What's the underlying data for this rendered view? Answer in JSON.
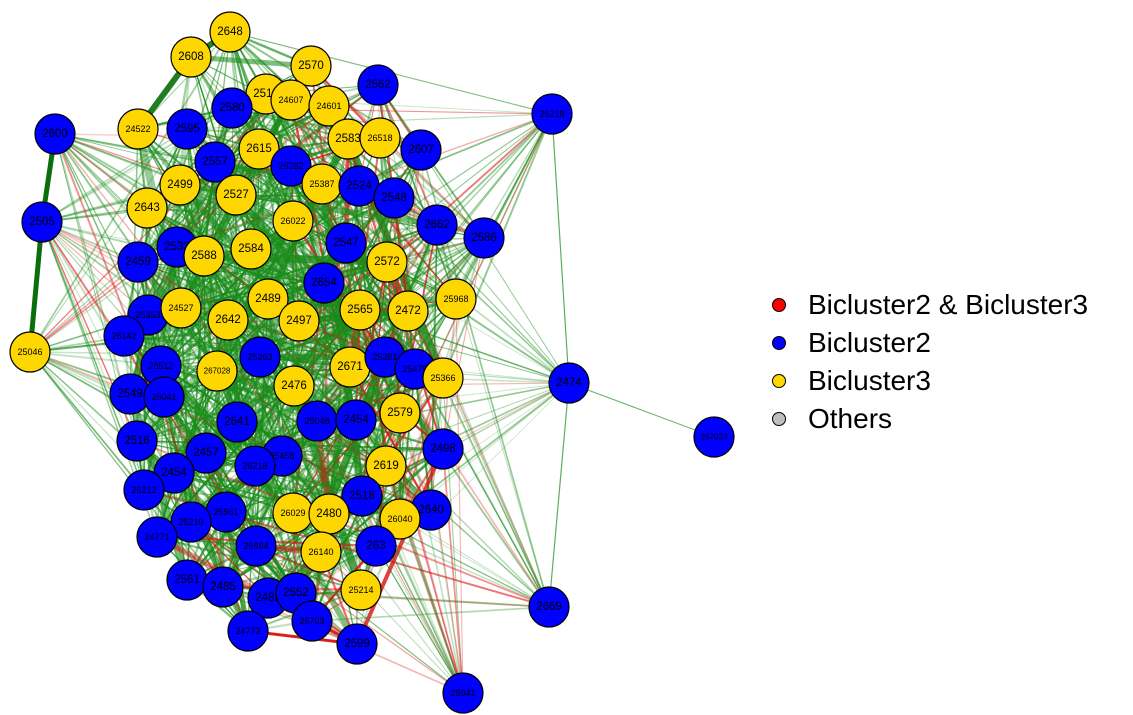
{
  "colors": {
    "both": "#ff0000",
    "bicluster2": "#0000ff",
    "bicluster3": "#ffd700",
    "others": "#bebebe",
    "edge_positive": "#1a8c1a",
    "edge_negative": "#e01010"
  },
  "legend": [
    {
      "label": "Bicluster2 & Bicluster3",
      "group": "both"
    },
    {
      "label": "Bicluster2",
      "group": "bicluster2"
    },
    {
      "label": "Bicluster3",
      "group": "bicluster3"
    },
    {
      "label": "Others",
      "group": "others"
    }
  ],
  "nodes": [
    {
      "id": "2648",
      "group": "bicluster3"
    },
    {
      "id": "2608",
      "group": "bicluster3"
    },
    {
      "id": "2570",
      "group": "bicluster3"
    },
    {
      "id": "2562",
      "group": "bicluster2"
    },
    {
      "id": "2513",
      "group": "bicluster3"
    },
    {
      "id": "2580",
      "group": "bicluster2"
    },
    {
      "id": "24607",
      "group": "bicluster3"
    },
    {
      "id": "24601",
      "group": "bicluster3"
    },
    {
      "id": "25218",
      "group": "bicluster2"
    },
    {
      "id": "2600",
      "group": "bicluster2"
    },
    {
      "id": "24522",
      "group": "bicluster3"
    },
    {
      "id": "2595",
      "group": "bicluster2"
    },
    {
      "id": "2583",
      "group": "bicluster3"
    },
    {
      "id": "26518",
      "group": "bicluster3"
    },
    {
      "id": "2607",
      "group": "bicluster2"
    },
    {
      "id": "2615",
      "group": "bicluster3"
    },
    {
      "id": "2557",
      "group": "bicluster2"
    },
    {
      "id": "25282",
      "group": "bicluster2"
    },
    {
      "id": "25387",
      "group": "bicluster3"
    },
    {
      "id": "2524",
      "group": "bicluster2"
    },
    {
      "id": "2499",
      "group": "bicluster3"
    },
    {
      "id": "2527",
      "group": "bicluster3"
    },
    {
      "id": "2548",
      "group": "bicluster2"
    },
    {
      "id": "2643",
      "group": "bicluster3"
    },
    {
      "id": "2505",
      "group": "bicluster2"
    },
    {
      "id": "26022",
      "group": "bicluster3"
    },
    {
      "id": "2662",
      "group": "bicluster2"
    },
    {
      "id": "2586",
      "group": "bicluster2"
    },
    {
      "id": "2533",
      "group": "bicluster2"
    },
    {
      "id": "2547",
      "group": "bicluster2"
    },
    {
      "id": "2584",
      "group": "bicluster3"
    },
    {
      "id": "2588",
      "group": "bicluster3"
    },
    {
      "id": "2459",
      "group": "bicluster2"
    },
    {
      "id": "2572",
      "group": "bicluster3"
    },
    {
      "id": "2654",
      "group": "bicluster2"
    },
    {
      "id": "2489",
      "group": "bicluster3"
    },
    {
      "id": "25968",
      "group": "bicluster3"
    },
    {
      "id": "25353",
      "group": "bicluster2"
    },
    {
      "id": "24527",
      "group": "bicluster3"
    },
    {
      "id": "2565",
      "group": "bicluster3"
    },
    {
      "id": "2472",
      "group": "bicluster3"
    },
    {
      "id": "2642",
      "group": "bicluster3"
    },
    {
      "id": "2497",
      "group": "bicluster3"
    },
    {
      "id": "26142",
      "group": "bicluster2"
    },
    {
      "id": "25046",
      "group": "bicluster3"
    },
    {
      "id": "26512",
      "group": "bicluster2"
    },
    {
      "id": "25263",
      "group": "bicluster2"
    },
    {
      "id": "267028",
      "group": "bicluster3"
    },
    {
      "id": "2671",
      "group": "bicluster3"
    },
    {
      "id": "25381",
      "group": "bicluster2"
    },
    {
      "id": "25475",
      "group": "bicluster2"
    },
    {
      "id": "25366",
      "group": "bicluster3"
    },
    {
      "id": "2474",
      "group": "bicluster2"
    },
    {
      "id": "2549",
      "group": "bicluster2"
    },
    {
      "id": "26041",
      "group": "bicluster2"
    },
    {
      "id": "2476",
      "group": "bicluster3"
    },
    {
      "id": "2641",
      "group": "bicluster2"
    },
    {
      "id": "25048",
      "group": "bicluster2"
    },
    {
      "id": "2454",
      "group": "bicluster2"
    },
    {
      "id": "2579",
      "group": "bicluster3"
    },
    {
      "id": "2516",
      "group": "bicluster2"
    },
    {
      "id": "267023",
      "group": "bicluster2"
    },
    {
      "id": "2498",
      "group": "bicluster2"
    },
    {
      "id": "2457",
      "group": "bicluster2"
    },
    {
      "id": "25458",
      "group": "bicluster2"
    },
    {
      "id": "26218",
      "group": "bicluster2"
    },
    {
      "id": "2619",
      "group": "bicluster3"
    },
    {
      "id": "2454",
      "group": "bicluster2"
    },
    {
      "id": "26212",
      "group": "bicluster2"
    },
    {
      "id": "2518",
      "group": "bicluster2"
    },
    {
      "id": "2640",
      "group": "bicluster2"
    },
    {
      "id": "26040",
      "group": "bicluster3"
    },
    {
      "id": "25961",
      "group": "bicluster2"
    },
    {
      "id": "26029",
      "group": "bicluster3"
    },
    {
      "id": "2480",
      "group": "bicluster3"
    },
    {
      "id": "25210",
      "group": "bicluster2"
    },
    {
      "id": "24771",
      "group": "bicluster2"
    },
    {
      "id": "25984",
      "group": "bicluster2"
    },
    {
      "id": "263",
      "group": "bicluster2"
    },
    {
      "id": "26140",
      "group": "bicluster3"
    },
    {
      "id": "2561",
      "group": "bicluster2"
    },
    {
      "id": "2485",
      "group": "bicluster2"
    },
    {
      "id": "2482",
      "group": "bicluster2"
    },
    {
      "id": "2552",
      "group": "bicluster2"
    },
    {
      "id": "25214",
      "group": "bicluster3"
    },
    {
      "id": "2669",
      "group": "bicluster2"
    },
    {
      "id": "24772",
      "group": "bicluster2"
    },
    {
      "id": "26703",
      "group": "bicluster2"
    },
    {
      "id": "2599",
      "group": "bicluster2"
    },
    {
      "id": "25941",
      "group": "bicluster2"
    }
  ]
}
